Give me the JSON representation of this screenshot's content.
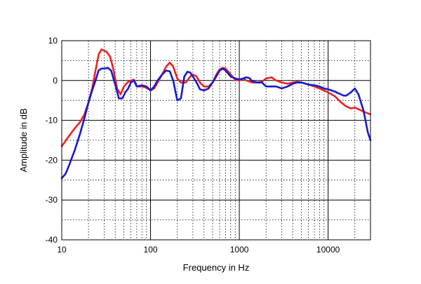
{
  "chart_data": {
    "type": "line",
    "title": "",
    "xlabel": "Frequency in Hz",
    "ylabel": "Amplitude in dB",
    "xscale": "log",
    "xlim": [
      10,
      30000
    ],
    "ylim": [
      -40,
      10
    ],
    "xticks": [
      10,
      100,
      1000,
      10000
    ],
    "xtick_labels": [
      "10",
      "100",
      "1000",
      "10000"
    ],
    "yticks": [
      -40,
      -30,
      -20,
      -10,
      0,
      10
    ],
    "ytick_labels": [
      "-40",
      "-30",
      "-20",
      "-10",
      "0",
      "10"
    ],
    "grid": true,
    "series": [
      {
        "color": "#ee2222",
        "x": [
          10,
          12,
          14,
          16,
          18,
          20,
          22,
          24,
          26,
          28,
          30,
          32,
          35,
          38,
          42,
          46,
          50,
          55,
          60,
          65,
          70,
          80,
          90,
          100,
          110,
          120,
          135,
          150,
          165,
          180,
          200,
          220,
          250,
          280,
          300,
          330,
          360,
          400,
          450,
          500,
          550,
          600,
          650,
          700,
          800,
          900,
          1000,
          1100,
          1200,
          1400,
          1600,
          1800,
          2000,
          2300,
          2600,
          3000,
          3500,
          4000,
          4500,
          5000,
          6000,
          7000,
          8000,
          9000,
          10000,
          12000,
          14000,
          16000,
          18000,
          20000,
          22000,
          25000,
          30000
        ],
        "y": [
          -16.5,
          -14,
          -12,
          -10.5,
          -8.5,
          -5.5,
          -2,
          2.5,
          6.5,
          7.8,
          7.5,
          7.2,
          6,
          3,
          -2,
          -3.5,
          -1.5,
          -0.5,
          0,
          0.2,
          -1.5,
          -1.5,
          -1.8,
          -2.5,
          -2,
          -0.5,
          1.5,
          3.5,
          4.5,
          3.5,
          0.5,
          -0.5,
          -0.5,
          1,
          1.5,
          1,
          -0.5,
          -1.5,
          -1.5,
          -0.5,
          1.5,
          2.8,
          3.2,
          3,
          1.5,
          0.2,
          0,
          0.5,
          0,
          -0.5,
          -0.5,
          -0.3,
          0.5,
          0.8,
          0,
          -0.5,
          -0.8,
          -0.5,
          -0.3,
          -0.5,
          -1,
          -1.5,
          -2,
          -2.5,
          -3,
          -4,
          -5.5,
          -6.5,
          -7,
          -6.8,
          -7.2,
          -7.8,
          -8.5
        ]
      },
      {
        "color": "#1a1acc",
        "x": [
          10,
          11,
          12,
          14,
          16,
          18,
          20,
          22,
          24,
          26,
          28,
          30,
          33,
          36,
          40,
          44,
          48,
          52,
          56,
          60,
          65,
          70,
          80,
          90,
          100,
          110,
          120,
          135,
          150,
          165,
          180,
          200,
          220,
          240,
          260,
          280,
          300,
          330,
          360,
          400,
          450,
          500,
          550,
          600,
          650,
          700,
          800,
          900,
          1000,
          1100,
          1200,
          1300,
          1400,
          1600,
          1800,
          2000,
          2300,
          2600,
          3000,
          3500,
          4000,
          4500,
          5000,
          6000,
          7000,
          8000,
          9000,
          10000,
          11000,
          12000,
          13000,
          14000,
          15000,
          16000,
          18000,
          20000,
          22000,
          25000,
          28000,
          30000
        ],
        "y": [
          -24.5,
          -23.5,
          -21.5,
          -17.5,
          -13.5,
          -9.5,
          -5.5,
          -2.5,
          0,
          2.5,
          3,
          3,
          3.2,
          2.5,
          -1,
          -4.5,
          -4.5,
          -3,
          -2,
          -0.5,
          0,
          -1.5,
          -1.2,
          -1.5,
          -2.5,
          -1.5,
          0,
          1.5,
          2.5,
          2.3,
          0,
          -5,
          -4.5,
          1,
          2.2,
          2,
          1,
          -0.5,
          -2.2,
          -2.5,
          -2,
          -0.5,
          1,
          2.5,
          3,
          2.5,
          1,
          0.5,
          0.3,
          0.5,
          0.8,
          0.6,
          -0.2,
          -0.5,
          -0.5,
          -1.5,
          -1.5,
          -1.5,
          -2,
          -1.5,
          -0.8,
          -0.5,
          -0.5,
          -1,
          -1.2,
          -1.5,
          -2,
          -2.2,
          -2.5,
          -2.8,
          -3.2,
          -3.5,
          -3.8,
          -3.8,
          -3,
          -2,
          -3.5,
          -7.5,
          -13,
          -15
        ]
      }
    ]
  }
}
